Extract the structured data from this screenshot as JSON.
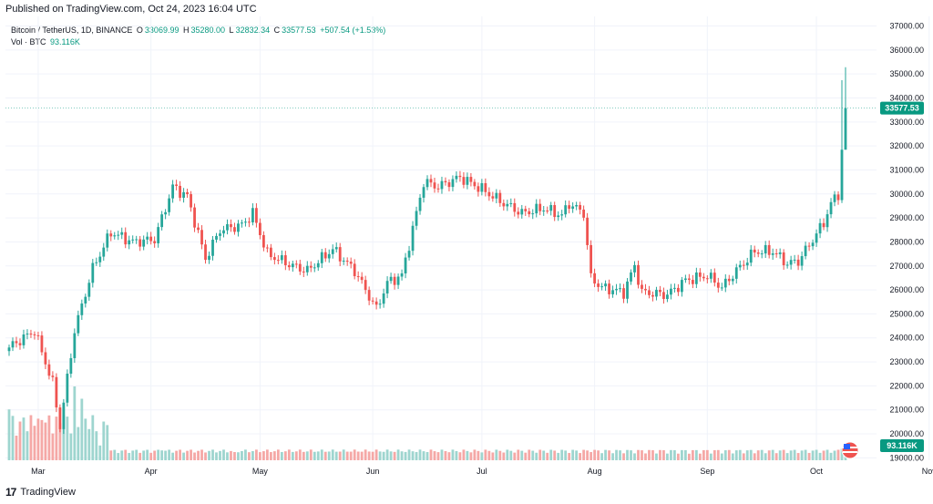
{
  "header": {
    "published": "Published on TradingView.com, Oct 24, 2023 16:04 UTC"
  },
  "legend": {
    "symbol": "Bitcoin / TetherUS, 1D, BINANCE",
    "o_label": "O",
    "o_value": "33069.99",
    "h_label": "H",
    "h_value": "35280.00",
    "l_label": "L",
    "l_value": "32832.34",
    "c_label": "C",
    "c_value": "33577.53",
    "change": "+507.54 (+1.53%)",
    "vol_label": "Vol · BTC",
    "vol_value": "93.116K"
  },
  "footer": {
    "logo": "17",
    "brand": "TradingView"
  },
  "colors": {
    "up": "#26a69a",
    "down": "#ef5350",
    "vol_up": "#9ed5cf",
    "vol_down": "#f5a8a6",
    "grid": "#f0f3fa",
    "axis_text": "#131722",
    "last_price": "#089981"
  },
  "chart_data": {
    "type": "candlestick",
    "x_ticks": [
      "Mar",
      "Apr",
      "May",
      "Jun",
      "Jul",
      "Aug",
      "Sep",
      "Oct",
      "Nov"
    ],
    "y_ticks": [
      "19000.00",
      "20000.00",
      "21000.00",
      "22000.00",
      "23000.00",
      "24000.00",
      "25000.00",
      "26000.00",
      "27000.00",
      "28000.00",
      "29000.00",
      "30000.00",
      "31000.00",
      "32000.00",
      "33000.00",
      "34000.00",
      "35000.00",
      "36000.00",
      "37000.00"
    ],
    "ylim": [
      18900,
      37400
    ],
    "last_price_label": "33577.53",
    "volume_label": "93.116K",
    "anchors": [
      [
        0,
        23600
      ],
      [
        7,
        24300
      ],
      [
        12,
        22100
      ],
      [
        14,
        20300
      ],
      [
        18,
        24300
      ],
      [
        23,
        26900
      ],
      [
        28,
        28400
      ],
      [
        34,
        28000
      ],
      [
        40,
        28100
      ],
      [
        45,
        30300
      ],
      [
        49,
        29900
      ],
      [
        54,
        27300
      ],
      [
        58,
        28500
      ],
      [
        64,
        28700
      ],
      [
        67,
        29200
      ],
      [
        71,
        27500
      ],
      [
        78,
        27000
      ],
      [
        82,
        26800
      ],
      [
        89,
        27700
      ],
      [
        95,
        26800
      ],
      [
        101,
        25200
      ],
      [
        104,
        26300
      ],
      [
        108,
        26600
      ],
      [
        114,
        30500
      ],
      [
        118,
        30300
      ],
      [
        124,
        30700
      ],
      [
        130,
        30200
      ],
      [
        135,
        29700
      ],
      [
        141,
        29200
      ],
      [
        147,
        29400
      ],
      [
        152,
        29100
      ],
      [
        154,
        29600
      ],
      [
        158,
        29200
      ],
      [
        160,
        26500
      ],
      [
        163,
        26100
      ],
      [
        169,
        25900
      ],
      [
        172,
        27000
      ],
      [
        174,
        25900
      ],
      [
        181,
        25800
      ],
      [
        186,
        26400
      ],
      [
        192,
        26600
      ],
      [
        196,
        26100
      ],
      [
        200,
        26800
      ],
      [
        205,
        27600
      ],
      [
        210,
        27600
      ],
      [
        214,
        27100
      ],
      [
        217,
        27200
      ],
      [
        221,
        28100
      ],
      [
        224,
        28800
      ],
      [
        226,
        29600
      ],
      [
        228,
        30000
      ],
      [
        230,
        33600
      ]
    ],
    "volume_spikes": [
      [
        0,
        0.62
      ],
      [
        2,
        0.3
      ],
      [
        7,
        0.42
      ],
      [
        10,
        0.46
      ],
      [
        15,
        0.55
      ],
      [
        18,
        0.9
      ],
      [
        20,
        0.75
      ],
      [
        25,
        0.18
      ],
      [
        42,
        0.12
      ],
      [
        62,
        0.1
      ],
      [
        115,
        0.1
      ],
      [
        160,
        0.1
      ],
      [
        229,
        0.14
      ]
    ]
  }
}
